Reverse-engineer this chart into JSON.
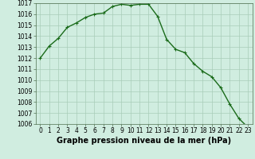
{
  "x": [
    0,
    1,
    2,
    3,
    4,
    5,
    6,
    7,
    8,
    9,
    10,
    11,
    12,
    13,
    14,
    15,
    16,
    17,
    18,
    19,
    20,
    21,
    22,
    23
  ],
  "y": [
    1012.0,
    1013.1,
    1013.8,
    1014.8,
    1015.2,
    1015.7,
    1016.0,
    1016.1,
    1016.7,
    1016.9,
    1016.8,
    1016.9,
    1016.9,
    1015.8,
    1013.7,
    1012.8,
    1012.5,
    1011.5,
    1010.8,
    1010.3,
    1009.3,
    1007.8,
    1006.5,
    1005.7
  ],
  "ylim": [
    1006,
    1017
  ],
  "xlim": [
    -0.5,
    23.5
  ],
  "yticks": [
    1006,
    1007,
    1008,
    1009,
    1010,
    1011,
    1012,
    1013,
    1014,
    1015,
    1016,
    1017
  ],
  "xticks": [
    0,
    1,
    2,
    3,
    4,
    5,
    6,
    7,
    8,
    9,
    10,
    11,
    12,
    13,
    14,
    15,
    16,
    17,
    18,
    19,
    20,
    21,
    22,
    23
  ],
  "line_color": "#1a6b1a",
  "marker": "+",
  "marker_size": 3,
  "bg_color": "#d0ede0",
  "grid_color": "#a8cdb8",
  "xlabel": "Graphe pression niveau de la mer (hPa)",
  "xlabel_fontsize": 7,
  "tick_fontsize": 5.5,
  "line_width": 1.0
}
